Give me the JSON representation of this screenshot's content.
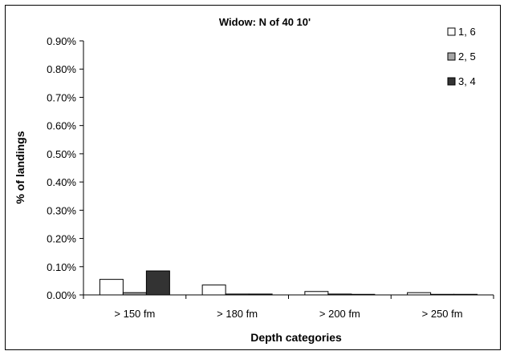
{
  "chart_data": {
    "type": "bar",
    "title": "Widow: N of 40 10'",
    "xlabel": "Depth categories",
    "ylabel": "% of landings",
    "categories": [
      "> 150 fm",
      "> 180 fm",
      "> 200 fm",
      "> 250 fm"
    ],
    "ylim": [
      0,
      0.9
    ],
    "yticks": [
      "0.00%",
      "0.10%",
      "0.20%",
      "0.30%",
      "0.40%",
      "0.50%",
      "0.60%",
      "0.70%",
      "0.80%",
      "0.90%"
    ],
    "legend_position": "top-right",
    "grid": false,
    "series": [
      {
        "name": "1, 6",
        "color": "#ffffff",
        "values": [
          0.055,
          0.035,
          0.012,
          0.008
        ]
      },
      {
        "name": "2, 5",
        "color": "#a6a6a6",
        "values": [
          0.008,
          0.003,
          0.003,
          0.002
        ]
      },
      {
        "name": "3, 4",
        "color": "#333333",
        "values": [
          0.085,
          0.003,
          0.002,
          0.002
        ]
      }
    ]
  }
}
